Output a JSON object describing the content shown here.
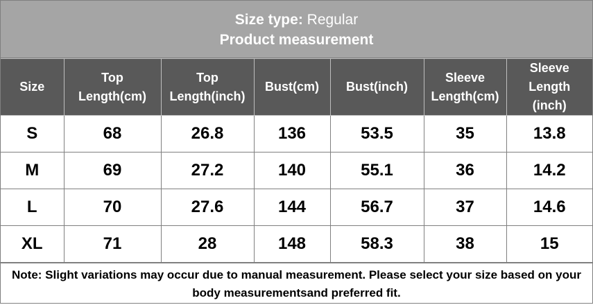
{
  "header": {
    "label": "Size type:",
    "value": "Regular",
    "subtitle": "Product measurement"
  },
  "table": {
    "columns": [
      "Size",
      "Top\nLength(cm)",
      "Top\nLength(inch)",
      "Bust(cm)",
      "Bust(inch)",
      "Sleeve\nLength(cm)",
      "Sleeve\nLength\n(inch)"
    ],
    "rows": [
      [
        "S",
        68,
        26.8,
        136,
        53.5,
        35,
        13.8
      ],
      [
        "M",
        69,
        27.2,
        140,
        55.1,
        36,
        14.2
      ],
      [
        "L",
        70,
        27.6,
        144,
        56.7,
        37,
        14.6
      ],
      [
        "XL",
        71,
        28,
        148,
        58.3,
        38,
        15
      ]
    ]
  },
  "note": "Note: Slight variations may occur due to manual measurement. Please select your size based on your body measurementsand preferred fit."
}
